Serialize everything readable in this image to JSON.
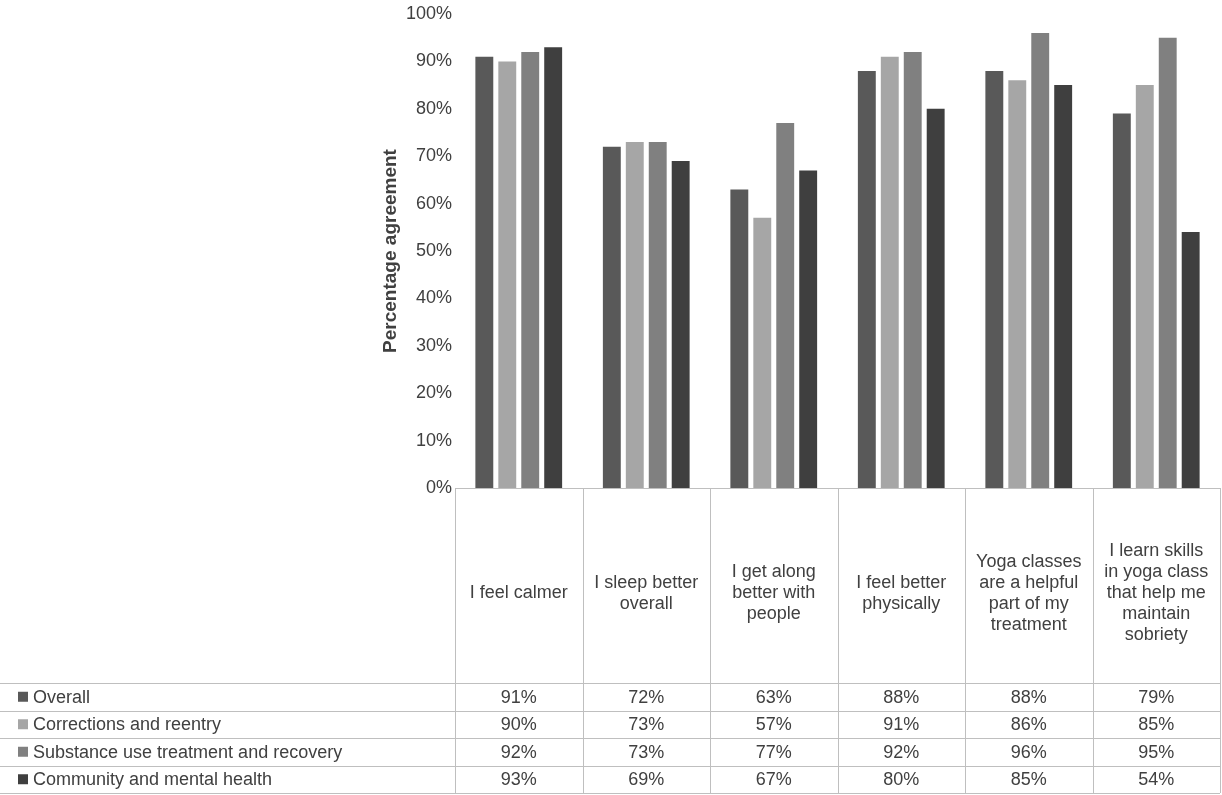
{
  "chart_data": {
    "type": "bar",
    "ylabel": "Percentage agreement",
    "categories": [
      "I feel calmer",
      "I sleep better overall",
      "I get along better with people",
      "I feel better physically",
      "Yoga classes are a helpful part of my treatment",
      "I learn skills in yoga class that help me maintain sobriety"
    ],
    "series": [
      {
        "name": "Overall",
        "color": "#595959",
        "values": [
          91,
          72,
          63,
          88,
          88,
          79
        ],
        "value_labels": [
          "91%",
          "72%",
          "63%",
          "88%",
          "88%",
          "79%"
        ]
      },
      {
        "name": "Corrections and reentry",
        "color": "#a6a6a6",
        "values": [
          90,
          73,
          57,
          91,
          86,
          85
        ],
        "value_labels": [
          "90%",
          "73%",
          "57%",
          "91%",
          "86%",
          "85%"
        ]
      },
      {
        "name": "Substance use treatment and recovery",
        "color": "#808080",
        "values": [
          92,
          73,
          77,
          92,
          96,
          95
        ],
        "value_labels": [
          "92%",
          "73%",
          "77%",
          "92%",
          "96%",
          "95%"
        ]
      },
      {
        "name": "Community and mental health",
        "color": "#3f3f3f",
        "values": [
          93,
          69,
          67,
          80,
          85,
          54
        ],
        "value_labels": [
          "93%",
          "69%",
          "67%",
          "80%",
          "85%",
          "54%"
        ]
      }
    ],
    "ylim": [
      0,
      100
    ],
    "yticks": [
      {
        "value": 0,
        "label": "0%"
      },
      {
        "value": 10,
        "label": "10%"
      },
      {
        "value": 20,
        "label": "20%"
      },
      {
        "value": 30,
        "label": "30%"
      },
      {
        "value": 40,
        "label": "40%"
      },
      {
        "value": 50,
        "label": "50%"
      },
      {
        "value": 60,
        "label": "60%"
      },
      {
        "value": 70,
        "label": "70%"
      },
      {
        "value": 80,
        "label": "80%"
      },
      {
        "value": 90,
        "label": "90%"
      },
      {
        "value": 100,
        "label": "100%"
      }
    ],
    "grid": false,
    "legend": "bottom"
  }
}
